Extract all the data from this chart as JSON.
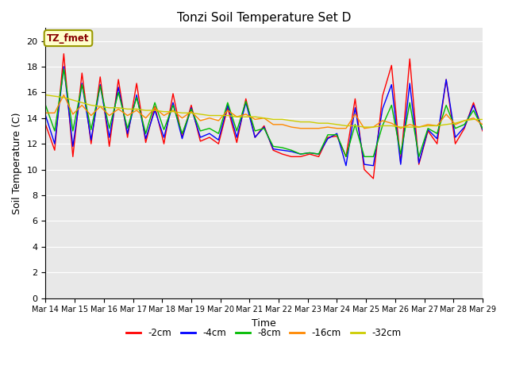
{
  "title": "Tonzi Soil Temperature Set D",
  "xlabel": "Time",
  "ylabel": "Soil Temperature (C)",
  "ylim": [
    0,
    21
  ],
  "yticks": [
    0,
    2,
    4,
    6,
    8,
    10,
    12,
    14,
    16,
    18,
    20
  ],
  "x_tick_positions": [
    14,
    15,
    16,
    17,
    18,
    19,
    20,
    21,
    22,
    23,
    24,
    25,
    26,
    27,
    28,
    29
  ],
  "x_tick_labels": [
    "Mar 14",
    "Mar 15",
    "Mar 16",
    "Mar 17",
    "Mar 18",
    "Mar 19",
    "Mar 20",
    "Mar 21",
    "Mar 22",
    "Mar 23",
    "Mar 24",
    "Mar 25",
    "Mar 26",
    "Mar 27",
    "Mar 28",
    "Mar 29"
  ],
  "legend_labels": [
    "-2cm",
    "-4cm",
    "-8cm",
    "-16cm",
    "-32cm"
  ],
  "legend_colors": [
    "#ff0000",
    "#0000ff",
    "#00bb00",
    "#ff8800",
    "#cccc00"
  ],
  "annotation_text": "TZ_fmet",
  "annotation_bg": "#ffffcc",
  "annotation_border": "#999900",
  "bg_color": "#e8e8e8",
  "series_colors": [
    "#ff0000",
    "#0000ff",
    "#00bb00",
    "#ff8800",
    "#cccc00"
  ],
  "series_2cm": [
    13.5,
    11.5,
    19.0,
    11.0,
    17.5,
    12.0,
    17.2,
    11.8,
    17.0,
    12.5,
    16.7,
    12.1,
    14.9,
    12.0,
    15.9,
    12.5,
    15.0,
    12.2,
    12.5,
    12.0,
    14.8,
    12.1,
    15.5,
    12.5,
    13.4,
    11.5,
    11.2,
    11.0,
    11.0,
    11.2,
    11.0,
    12.5,
    12.6,
    11.0,
    15.5,
    10.0,
    9.3,
    15.7,
    18.1,
    10.5,
    18.6,
    10.4,
    13.0,
    12.0,
    17.0,
    12.0,
    13.2,
    15.2,
    13.0
  ],
  "series_4cm": [
    14.2,
    12.0,
    18.0,
    11.8,
    16.7,
    12.3,
    16.6,
    12.5,
    16.4,
    12.8,
    15.8,
    12.4,
    14.6,
    12.5,
    15.2,
    12.4,
    14.8,
    12.5,
    12.8,
    12.3,
    15.0,
    12.5,
    15.2,
    12.5,
    13.3,
    11.6,
    11.5,
    11.4,
    11.2,
    11.3,
    11.2,
    12.4,
    12.8,
    10.3,
    14.8,
    10.4,
    10.3,
    14.7,
    16.6,
    10.4,
    16.7,
    10.5,
    13.1,
    12.4,
    17.0,
    12.5,
    13.3,
    15.0,
    13.1
  ],
  "series_8cm": [
    15.0,
    13.0,
    17.8,
    13.0,
    16.6,
    13.1,
    16.5,
    13.2,
    16.0,
    13.2,
    15.6,
    12.8,
    15.2,
    13.1,
    15.0,
    12.8,
    14.7,
    13.0,
    13.2,
    12.8,
    15.2,
    13.0,
    15.3,
    13.0,
    13.2,
    11.8,
    11.7,
    11.5,
    11.2,
    11.3,
    11.2,
    12.7,
    12.7,
    11.0,
    13.5,
    11.0,
    11.0,
    13.4,
    15.0,
    11.2,
    15.2,
    11.0,
    13.2,
    12.8,
    15.0,
    13.2,
    13.5,
    14.6,
    13.2
  ],
  "series_16cm": [
    14.4,
    14.4,
    15.8,
    14.3,
    15.0,
    14.2,
    14.9,
    14.2,
    14.7,
    14.2,
    14.6,
    14.0,
    14.8,
    14.2,
    14.6,
    14.0,
    14.5,
    13.8,
    14.0,
    13.8,
    14.6,
    14.1,
    14.3,
    13.9,
    14.0,
    13.5,
    13.5,
    13.3,
    13.2,
    13.2,
    13.2,
    13.3,
    13.2,
    13.2,
    14.3,
    13.2,
    13.3,
    13.8,
    13.6,
    13.2,
    13.5,
    13.3,
    13.5,
    13.4,
    14.3,
    13.5,
    13.8,
    14.0,
    13.5
  ],
  "series_32cm": [
    15.8,
    15.7,
    15.6,
    15.4,
    15.2,
    15.0,
    14.9,
    14.8,
    14.8,
    14.7,
    14.7,
    14.6,
    14.6,
    14.5,
    14.5,
    14.4,
    14.4,
    14.3,
    14.2,
    14.2,
    14.2,
    14.1,
    14.1,
    14.1,
    14.0,
    13.9,
    13.9,
    13.8,
    13.7,
    13.7,
    13.6,
    13.6,
    13.5,
    13.4,
    13.4,
    13.3,
    13.3,
    13.4,
    13.4,
    13.3,
    13.3,
    13.3,
    13.4,
    13.4,
    13.5,
    13.6,
    13.8,
    13.9,
    13.9
  ]
}
